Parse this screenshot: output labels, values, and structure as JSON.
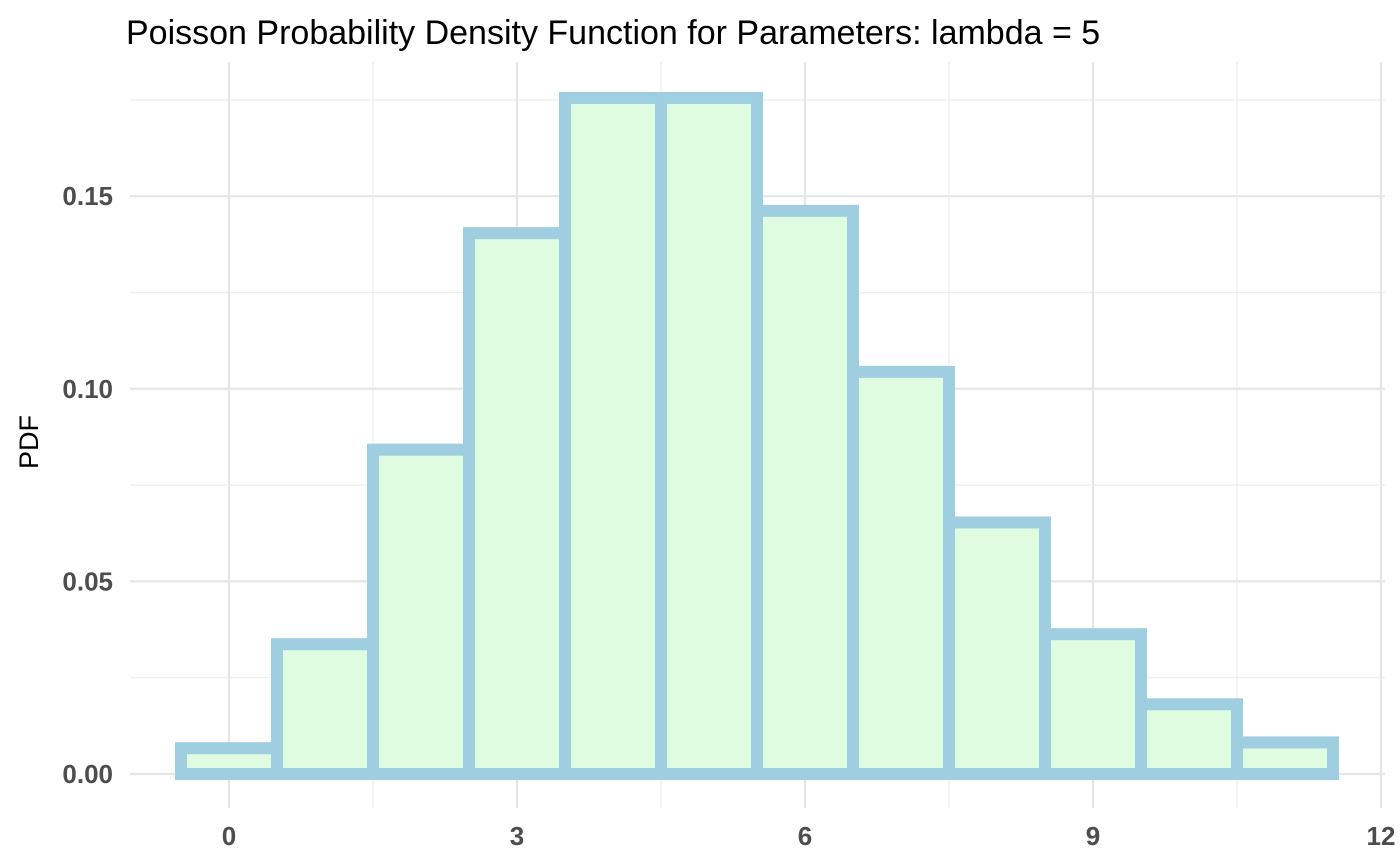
{
  "chart_data": {
    "type": "bar",
    "title": "Poisson Probability Density Function for Parameters: lambda = 5",
    "xlabel": "",
    "ylabel": "PDF",
    "x": [
      0,
      1,
      2,
      3,
      4,
      5,
      6,
      7,
      8,
      9,
      10,
      11
    ],
    "values": [
      0.0067,
      0.0337,
      0.0842,
      0.1404,
      0.1755,
      0.1755,
      0.1462,
      0.1044,
      0.0653,
      0.0363,
      0.0181,
      0.0082
    ],
    "xlim": [
      -0.5,
      12
    ],
    "ylim": [
      0,
      0.175
    ],
    "x_ticks": [
      "0",
      "3",
      "6",
      "9",
      "12"
    ],
    "y_ticks": [
      "0.00",
      "0.05",
      "0.10",
      "0.15"
    ],
    "grid": true,
    "colors": {
      "fill": "#dffbe0",
      "outline": "#9ecee0"
    }
  }
}
